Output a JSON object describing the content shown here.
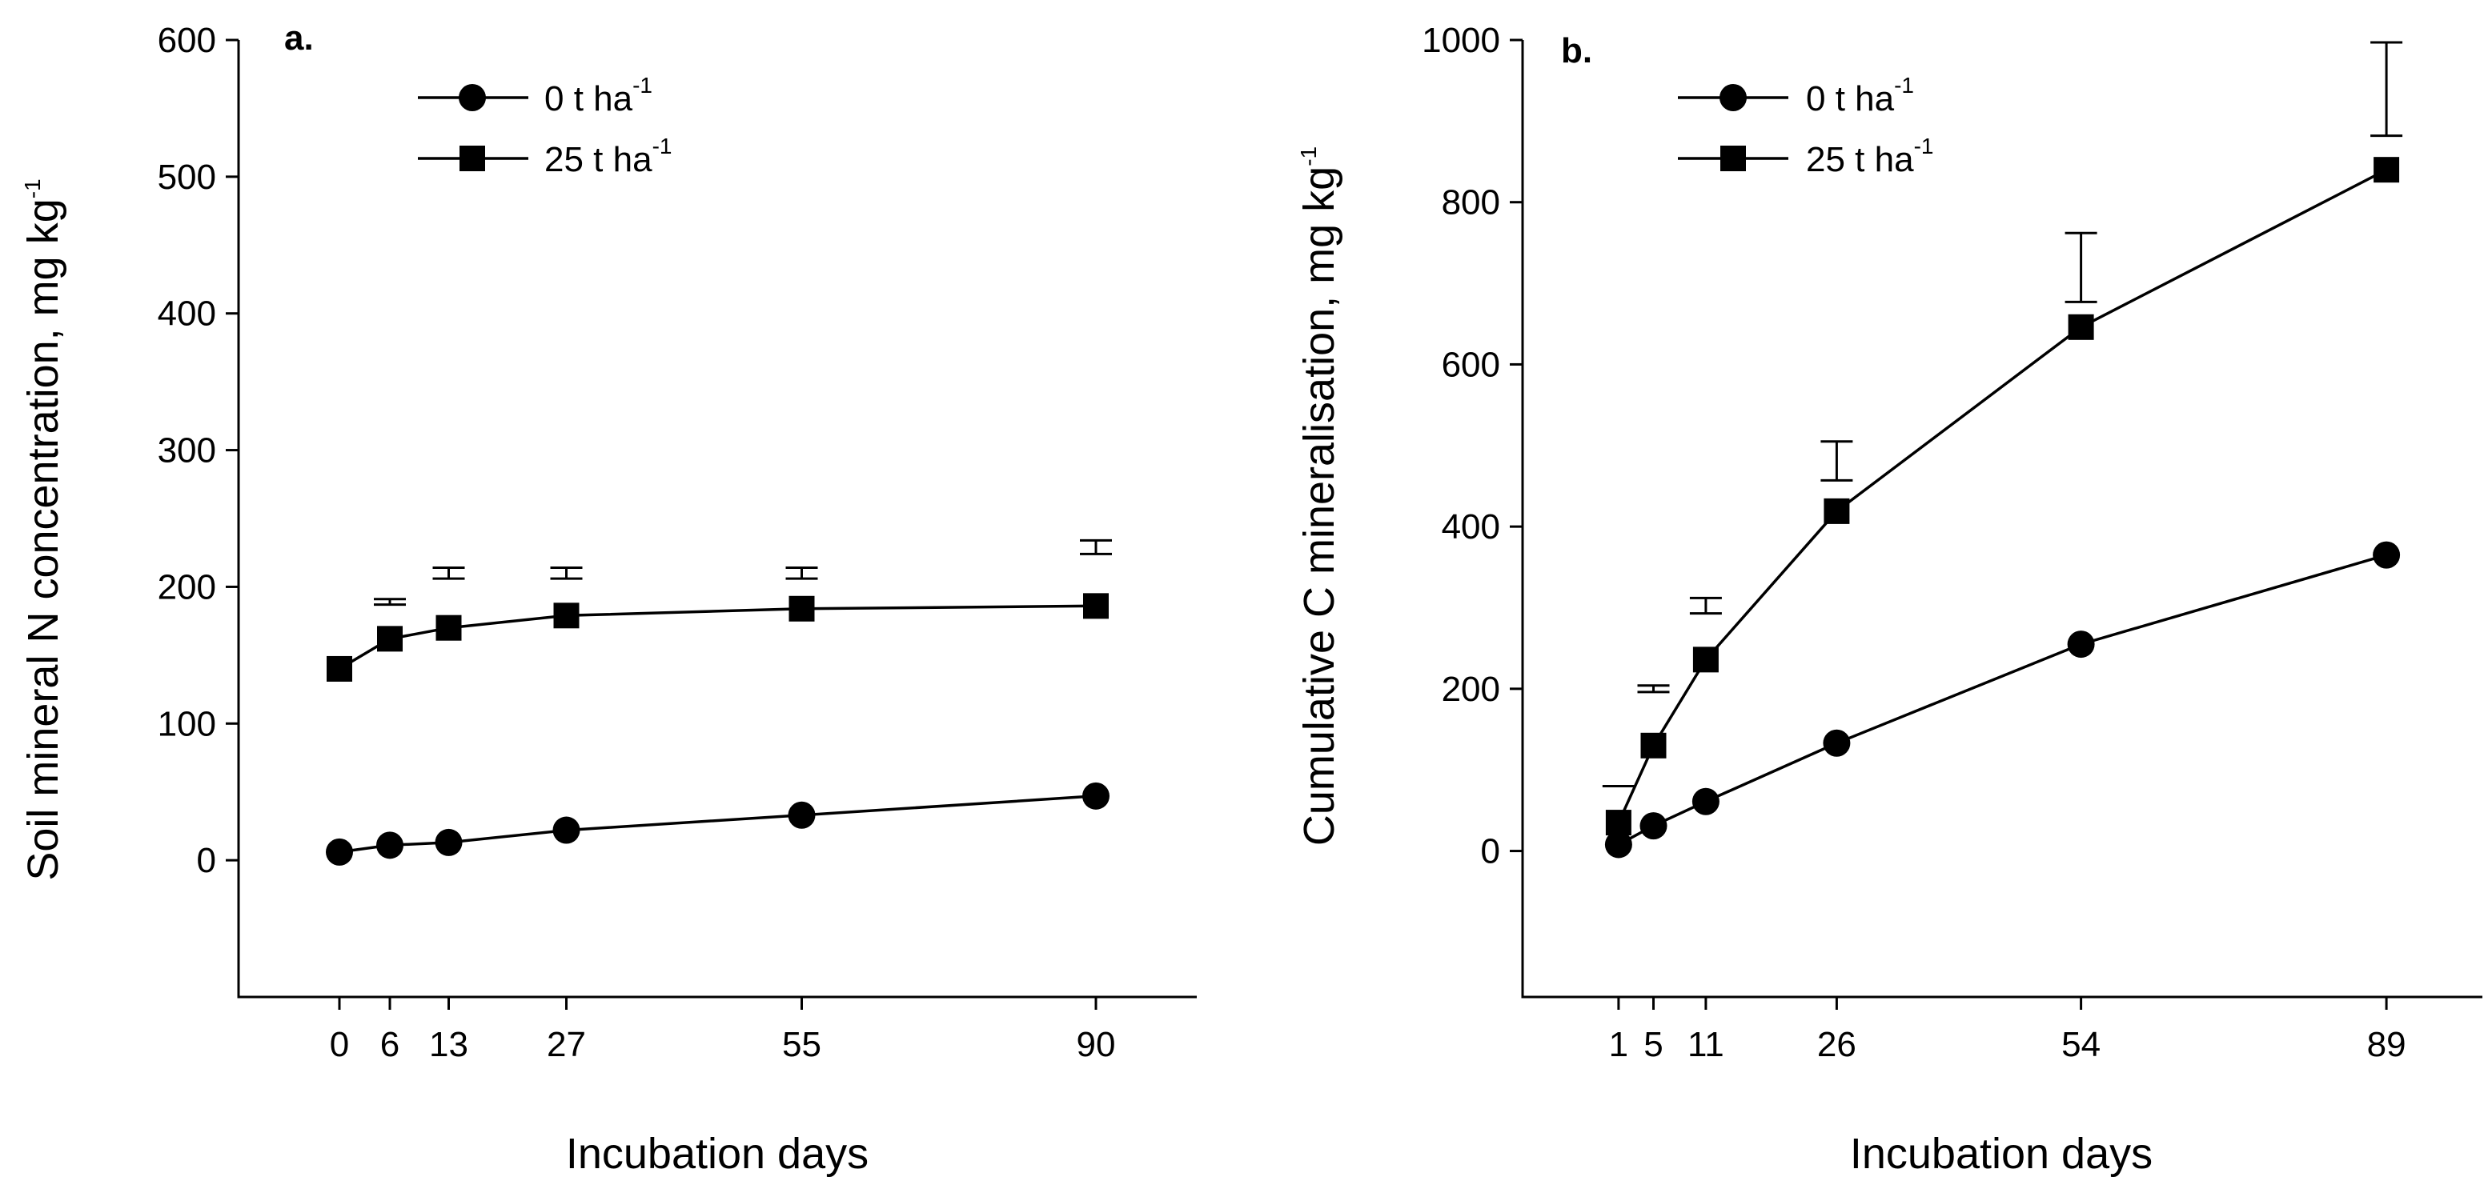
{
  "chart_data": [
    {
      "type": "line",
      "panel_label": "a.",
      "xlabel": "Incubation days",
      "ylabel": "Soil mineral N concentration, mg kg-1",
      "ylabel_main": "Soil mineral N concentration, mg kg",
      "ylabel_sup": "-1",
      "xlim": [
        -12,
        102
      ],
      "ylim": [
        -100,
        600
      ],
      "x_ticks": [
        0,
        6,
        13,
        27,
        55,
        90
      ],
      "x_tick_labels": [
        "0",
        "6",
        "13",
        "27",
        "55",
        "90"
      ],
      "y_ticks": [
        0,
        100,
        200,
        300,
        400,
        500,
        600
      ],
      "y_tick_labels": [
        "0",
        "100",
        "200",
        "300",
        "400",
        "500",
        "600"
      ],
      "legend_position": "top-center",
      "series": [
        {
          "name": "0 t ha-1",
          "label_main": "0 t ha",
          "label_sup": "-1",
          "marker": "circle",
          "x": [
            0,
            6,
            13,
            27,
            55,
            90
          ],
          "y": [
            6,
            11,
            13,
            22,
            33,
            47
          ]
        },
        {
          "name": "25 t ha-1",
          "label_main": "25 t ha",
          "label_sup": "-1",
          "marker": "square",
          "x": [
            0,
            6,
            13,
            27,
            55,
            90
          ],
          "y": [
            140,
            162,
            170,
            179,
            184,
            186
          ],
          "error_bars": [
            {
              "x": 6,
              "low": 187,
              "high": 191
            },
            {
              "x": 13,
              "low": 206,
              "high": 214
            },
            {
              "x": 27,
              "low": 206,
              "high": 214
            },
            {
              "x": 55,
              "low": 206,
              "high": 214
            },
            {
              "x": 90,
              "low": 224,
              "high": 234
            }
          ]
        }
      ]
    },
    {
      "type": "line",
      "panel_label": "b.",
      "xlabel": "Incubation days",
      "ylabel": "Cumulative C mineralisation, mg kg-1",
      "ylabel_main": "Cumulative C mineralisation, mg kg",
      "ylabel_sup": "-1",
      "xlim": [
        -10,
        100
      ],
      "ylim": [
        -180,
        1000
      ],
      "x_ticks": [
        1,
        5,
        11,
        26,
        54,
        89
      ],
      "x_tick_labels": [
        "1",
        "5",
        "11",
        "26",
        "54",
        "89"
      ],
      "y_ticks": [
        0,
        200,
        400,
        600,
        800,
        1000
      ],
      "y_tick_labels": [
        "0",
        "200",
        "400",
        "600",
        "800",
        "1000"
      ],
      "legend_position": "top-left",
      "series": [
        {
          "name": "0 t ha-1",
          "label_main": "0 t ha",
          "label_sup": "-1",
          "marker": "circle",
          "x": [
            1,
            5,
            11,
            26,
            54,
            89
          ],
          "y": [
            8,
            31,
            61,
            133,
            255,
            365
          ]
        },
        {
          "name": "25 t ha-1",
          "label_main": "25 t ha",
          "label_sup": "-1",
          "marker": "square",
          "x": [
            1,
            5,
            11,
            26,
            54,
            89
          ],
          "y": [
            35,
            130,
            236,
            419,
            646,
            840
          ],
          "error_bars": [
            {
              "x": 1,
              "low": 80,
              "high": 80
            },
            {
              "x": 5,
              "low": 196,
              "high": 204
            },
            {
              "x": 11,
              "low": 293,
              "high": 312
            },
            {
              "x": 26,
              "low": 457,
              "high": 505
            },
            {
              "x": 54,
              "low": 677,
              "high": 762
            },
            {
              "x": 89,
              "low": 882,
              "high": 997
            }
          ]
        }
      ]
    }
  ]
}
